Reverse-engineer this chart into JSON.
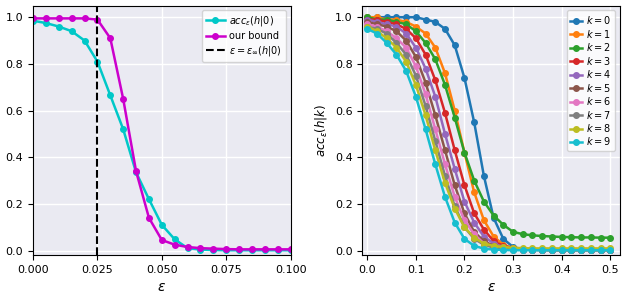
{
  "left_plot": {
    "xlabel": "$\\varepsilon$",
    "xlim": [
      0.0,
      0.1
    ],
    "ylim": [
      -0.02,
      1.05
    ],
    "xticks": [
      0.0,
      0.025,
      0.05,
      0.075,
      0.1
    ],
    "yticks": [
      0.0,
      0.2,
      0.4,
      0.6,
      0.8,
      1.0
    ],
    "vline_x": 0.025,
    "vline_label": "$\\varepsilon = \\varepsilon_{\\infty}(h|0)$",
    "acc_color": "#00C8C8",
    "bound_color": "#CC00CC",
    "acc_label": "$acc_{\\varepsilon}(h|0)$",
    "bound_label": "our bound",
    "acc_x": [
      0.0,
      0.005,
      0.01,
      0.015,
      0.02,
      0.025,
      0.03,
      0.035,
      0.04,
      0.045,
      0.05,
      0.055,
      0.06,
      0.065,
      0.07,
      0.075,
      0.08,
      0.085,
      0.09,
      0.095,
      0.1
    ],
    "acc_y": [
      0.985,
      0.975,
      0.96,
      0.94,
      0.9,
      0.81,
      0.665,
      0.52,
      0.335,
      0.22,
      0.11,
      0.048,
      0.01,
      0.004,
      0.002,
      0.001,
      0.001,
      0.001,
      0.001,
      0.001,
      0.001
    ],
    "bound_x": [
      0.0,
      0.005,
      0.01,
      0.015,
      0.02,
      0.025,
      0.03,
      0.035,
      0.04,
      0.045,
      0.05,
      0.055,
      0.06,
      0.065,
      0.07,
      0.075,
      0.08,
      0.085,
      0.09,
      0.095,
      0.1
    ],
    "bound_y": [
      0.995,
      0.995,
      0.995,
      0.995,
      0.995,
      0.99,
      0.91,
      0.65,
      0.34,
      0.14,
      0.045,
      0.025,
      0.015,
      0.01,
      0.008,
      0.006,
      0.005,
      0.005,
      0.005,
      0.005,
      0.005
    ]
  },
  "right_plot": {
    "xlabel": "$\\varepsilon$",
    "ylabel": "$acc_{\\varepsilon}(h|k)$",
    "xlim": [
      -0.01,
      0.52
    ],
    "ylim": [
      -0.02,
      1.05
    ],
    "xticks": [
      0.0,
      0.1,
      0.2,
      0.3,
      0.4,
      0.5
    ],
    "yticks": [
      0.0,
      0.2,
      0.4,
      0.6,
      0.8,
      1.0
    ],
    "k_colors": [
      "#1f77b4",
      "#ff7f0e",
      "#2ca02c",
      "#d62728",
      "#9467bd",
      "#8c564b",
      "#e377c2",
      "#7f7f7f",
      "#bcbd22",
      "#17becf"
    ],
    "k_labels": [
      "$k = 0$",
      "$k = 1$",
      "$k = 2$",
      "$k = 3$",
      "$k = 4$",
      "$k = 5$",
      "$k = 6$",
      "$k = 7$",
      "$k = 8$",
      "$k = 9$"
    ],
    "k_x": [
      0.0,
      0.02,
      0.04,
      0.06,
      0.08,
      0.1,
      0.12,
      0.14,
      0.16,
      0.18,
      0.2,
      0.22,
      0.24,
      0.26,
      0.28,
      0.3,
      0.32,
      0.34,
      0.36,
      0.38,
      0.4,
      0.42,
      0.44,
      0.46,
      0.48,
      0.5
    ],
    "k_y": {
      "0": [
        1.0,
        1.0,
        1.0,
        1.0,
        1.0,
        1.0,
        0.99,
        0.98,
        0.95,
        0.88,
        0.74,
        0.55,
        0.32,
        0.14,
        0.05,
        0.015,
        0.005,
        0.003,
        0.002,
        0.001,
        0.001,
        0.001,
        0.001,
        0.001,
        0.001,
        0.001
      ],
      "1": [
        1.0,
        1.0,
        0.99,
        0.99,
        0.98,
        0.96,
        0.93,
        0.87,
        0.76,
        0.6,
        0.42,
        0.25,
        0.13,
        0.06,
        0.025,
        0.01,
        0.005,
        0.003,
        0.002,
        0.001,
        0.001,
        0.001,
        0.001,
        0.001,
        0.001,
        0.001
      ],
      "2": [
        1.0,
        0.99,
        0.99,
        0.98,
        0.97,
        0.94,
        0.89,
        0.82,
        0.71,
        0.57,
        0.42,
        0.3,
        0.21,
        0.15,
        0.11,
        0.08,
        0.07,
        0.065,
        0.062,
        0.06,
        0.058,
        0.057,
        0.056,
        0.056,
        0.055,
        0.055
      ],
      "3": [
        0.99,
        0.99,
        0.98,
        0.97,
        0.95,
        0.91,
        0.84,
        0.73,
        0.59,
        0.43,
        0.28,
        0.16,
        0.09,
        0.04,
        0.02,
        0.01,
        0.007,
        0.005,
        0.004,
        0.003,
        0.003,
        0.003,
        0.003,
        0.003,
        0.003,
        0.003
      ],
      "4": [
        0.99,
        0.98,
        0.97,
        0.96,
        0.93,
        0.87,
        0.78,
        0.66,
        0.5,
        0.35,
        0.21,
        0.12,
        0.06,
        0.03,
        0.015,
        0.008,
        0.005,
        0.004,
        0.003,
        0.003,
        0.003,
        0.003,
        0.003,
        0.003,
        0.003,
        0.003
      ],
      "5": [
        0.98,
        0.97,
        0.96,
        0.94,
        0.9,
        0.83,
        0.72,
        0.58,
        0.43,
        0.28,
        0.16,
        0.08,
        0.04,
        0.02,
        0.01,
        0.006,
        0.004,
        0.003,
        0.003,
        0.003,
        0.003,
        0.003,
        0.003,
        0.003,
        0.003,
        0.003
      ],
      "6": [
        0.97,
        0.96,
        0.94,
        0.91,
        0.87,
        0.79,
        0.67,
        0.52,
        0.37,
        0.23,
        0.13,
        0.07,
        0.03,
        0.015,
        0.008,
        0.005,
        0.004,
        0.003,
        0.003,
        0.003,
        0.003,
        0.003,
        0.003,
        0.003,
        0.003,
        0.003
      ],
      "7": [
        0.96,
        0.95,
        0.93,
        0.89,
        0.84,
        0.75,
        0.62,
        0.47,
        0.32,
        0.19,
        0.1,
        0.05,
        0.025,
        0.012,
        0.007,
        0.004,
        0.003,
        0.003,
        0.003,
        0.003,
        0.003,
        0.003,
        0.003,
        0.003,
        0.003,
        0.003
      ],
      "8": [
        0.96,
        0.94,
        0.91,
        0.87,
        0.81,
        0.71,
        0.58,
        0.43,
        0.29,
        0.18,
        0.1,
        0.055,
        0.03,
        0.02,
        0.015,
        0.012,
        0.01,
        0.009,
        0.009,
        0.009,
        0.009,
        0.009,
        0.009,
        0.009,
        0.009,
        0.009
      ],
      "9": [
        0.95,
        0.93,
        0.89,
        0.84,
        0.77,
        0.66,
        0.52,
        0.37,
        0.23,
        0.12,
        0.05,
        0.02,
        0.008,
        0.004,
        0.002,
        0.001,
        0.001,
        0.001,
        0.001,
        0.001,
        0.001,
        0.001,
        0.001,
        0.001,
        0.001,
        0.001
      ]
    }
  },
  "bg_color": "#eaeaf2",
  "grid_color": "white",
  "grid_lw": 1.0
}
